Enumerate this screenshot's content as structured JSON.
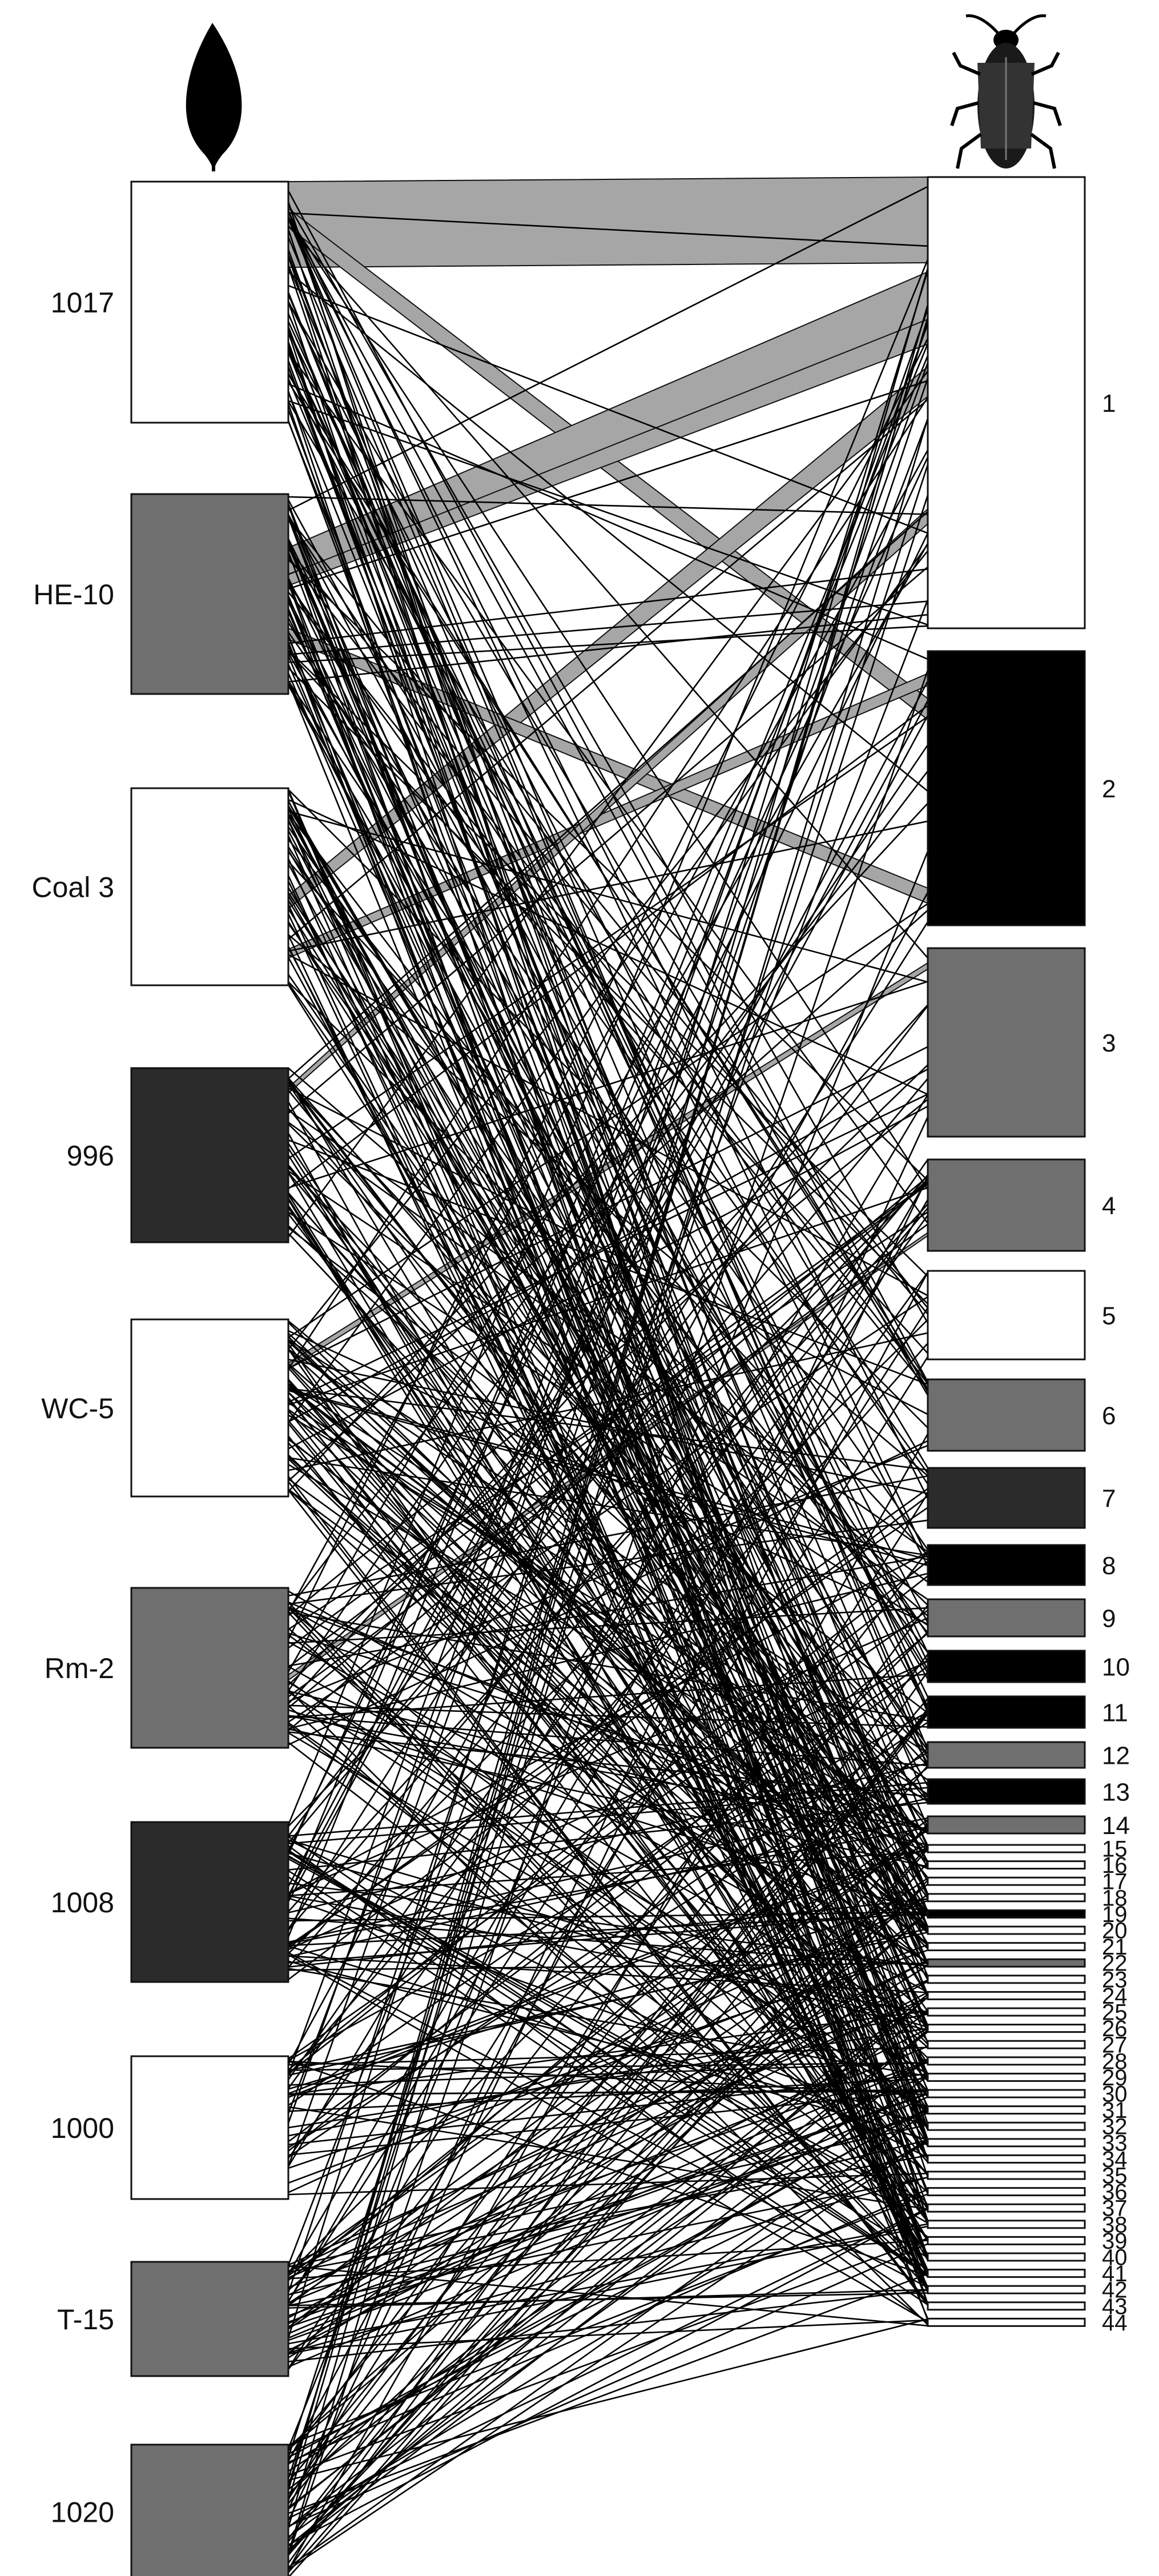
{
  "plants": [
    {
      "label": "1017",
      "tone": "white"
    },
    {
      "label": "HE-10",
      "tone": "gray"
    },
    {
      "label": "Coal 3",
      "tone": "white"
    },
    {
      "label": "996",
      "tone": "dark"
    },
    {
      "label": "WC-5",
      "tone": "white"
    },
    {
      "label": "Rm-2",
      "tone": "gray"
    },
    {
      "label": "1008",
      "tone": "dark"
    },
    {
      "label": "1000",
      "tone": "white"
    },
    {
      "label": "T-15",
      "tone": "gray"
    },
    {
      "label": "1020",
      "tone": "gray"
    }
  ],
  "insects": [
    {
      "label": "1",
      "tone": "white"
    },
    {
      "label": "2",
      "tone": "black"
    },
    {
      "label": "3",
      "tone": "gray"
    },
    {
      "label": "4",
      "tone": "gray"
    },
    {
      "label": "5",
      "tone": "white"
    },
    {
      "label": "6",
      "tone": "gray"
    },
    {
      "label": "7",
      "tone": "dark"
    },
    {
      "label": "8",
      "tone": "black"
    },
    {
      "label": "9",
      "tone": "gray"
    },
    {
      "label": "10",
      "tone": "black"
    },
    {
      "label": "11",
      "tone": "black"
    },
    {
      "label": "12",
      "tone": "gray"
    },
    {
      "label": "13",
      "tone": "black"
    },
    {
      "label": "14",
      "tone": "gray"
    },
    {
      "label": "15",
      "tone": "white"
    },
    {
      "label": "16",
      "tone": "white"
    },
    {
      "label": "17",
      "tone": "white"
    },
    {
      "label": "18",
      "tone": "white"
    },
    {
      "label": "19",
      "tone": "black"
    },
    {
      "label": "20",
      "tone": "white"
    },
    {
      "label": "21",
      "tone": "white"
    },
    {
      "label": "22",
      "tone": "gray"
    },
    {
      "label": "23",
      "tone": "white"
    },
    {
      "label": "24",
      "tone": "white"
    },
    {
      "label": "25",
      "tone": "white"
    },
    {
      "label": "26",
      "tone": "white"
    },
    {
      "label": "27",
      "tone": "white"
    },
    {
      "label": "28",
      "tone": "white"
    },
    {
      "label": "29",
      "tone": "white"
    },
    {
      "label": "30",
      "tone": "white"
    },
    {
      "label": "31",
      "tone": "white"
    },
    {
      "label": "32",
      "tone": "white"
    },
    {
      "label": "33",
      "tone": "white"
    },
    {
      "label": "34",
      "tone": "white"
    },
    {
      "label": "35",
      "tone": "white"
    },
    {
      "label": "36",
      "tone": "white"
    },
    {
      "label": "37",
      "tone": "white"
    },
    {
      "label": "38",
      "tone": "white"
    },
    {
      "label": "39",
      "tone": "white"
    },
    {
      "label": "40",
      "tone": "white"
    },
    {
      "label": "41",
      "tone": "white"
    },
    {
      "label": "42",
      "tone": "white"
    },
    {
      "label": "43",
      "tone": "white"
    },
    {
      "label": "44",
      "tone": "white"
    }
  ],
  "colors": {
    "white": "#ffffff",
    "gray": "#6f6f6f",
    "dark": "#2b2b2b",
    "black": "#000000",
    "band": "#a6a6a6",
    "line": "#000000",
    "stroke": "#111111"
  },
  "icons": {
    "plants_header": "leaf-icon",
    "insects_header": "beetle-icon"
  }
}
